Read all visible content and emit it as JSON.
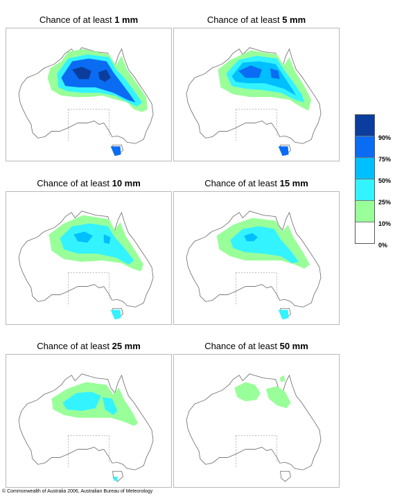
{
  "panels": [
    {
      "prefix": "Chance of at least ",
      "amount": "1 mm"
    },
    {
      "prefix": "Chance of at least ",
      "amount": "5 mm"
    },
    {
      "prefix": "Chance of at least ",
      "amount": "10 mm"
    },
    {
      "prefix": "Chance of at least ",
      "amount": "15 mm"
    },
    {
      "prefix": "Chance of at least ",
      "amount": "25 mm"
    },
    {
      "prefix": "Chance of at least ",
      "amount": "50 mm"
    }
  ],
  "legend": {
    "bands": [
      {
        "color": "#0b3d9e",
        "range": "90-100%"
      },
      {
        "color": "#0a6cf2",
        "range": "75-90%"
      },
      {
        "color": "#00bfff",
        "range": "50-75%"
      },
      {
        "color": "#33f3ff",
        "range": "25-50%"
      },
      {
        "color": "#99ff99",
        "range": "10-25%"
      },
      {
        "color": "#ffffff",
        "range": "0-10%"
      }
    ],
    "labels": [
      "90%",
      "75%",
      "50%",
      "25%",
      "10%",
      "0%"
    ]
  },
  "copyright": "© Commonwealth of Australia 2006, Australian Bureau of Meteorology"
}
